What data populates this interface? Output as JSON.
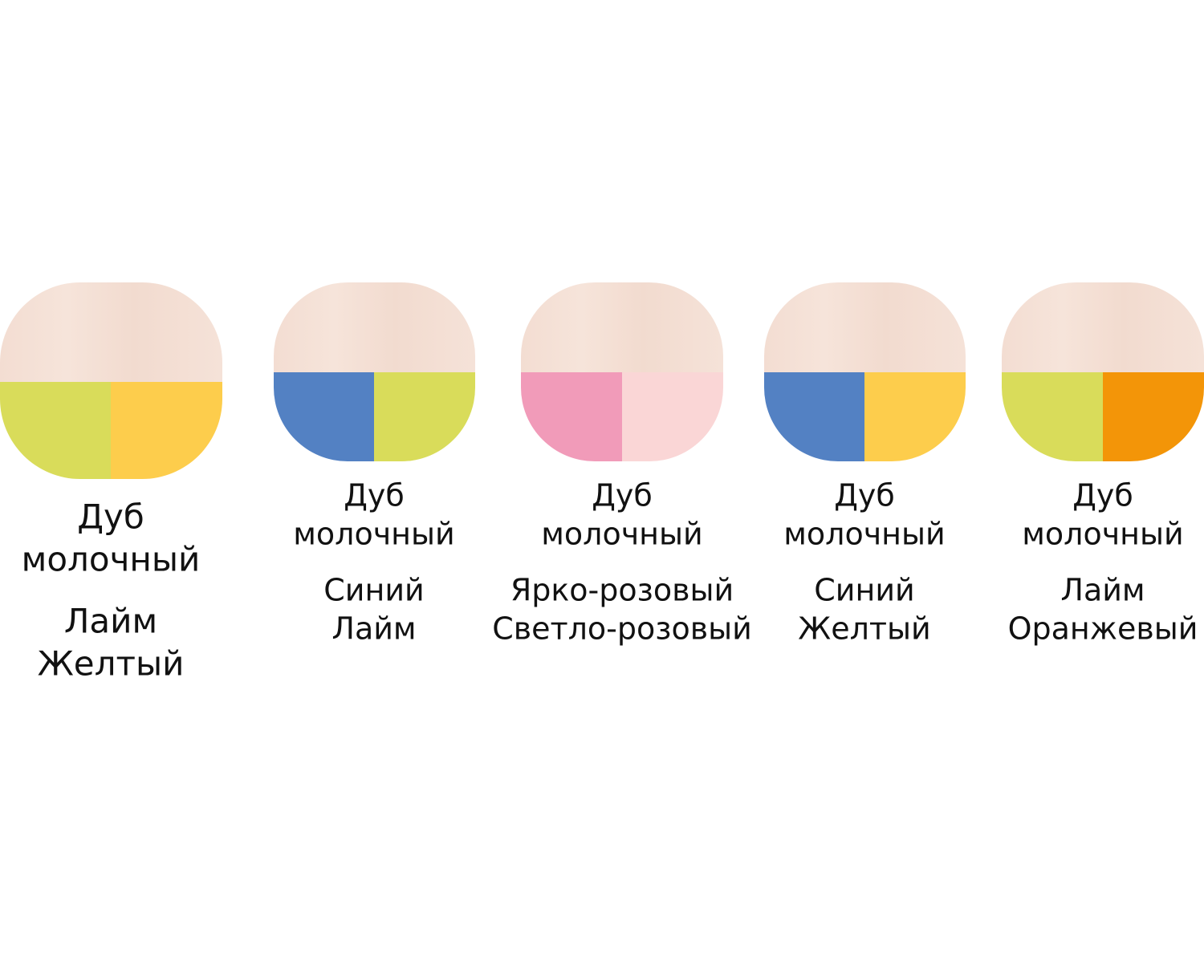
{
  "swatches": [
    {
      "material": [
        "Дуб",
        "молочный"
      ],
      "colors": [
        "Лайм",
        "Желтый"
      ]
    },
    {
      "material": [
        "Дуб",
        "молочный"
      ],
      "colors": [
        "Синий",
        "Лайм"
      ]
    },
    {
      "material": [
        "Дуб",
        "молочный"
      ],
      "colors": [
        "Ярко-розовый",
        "Светло-розовый"
      ]
    },
    {
      "material": [
        "Дуб",
        "молочный"
      ],
      "colors": [
        "Синий",
        "Желтый"
      ]
    },
    {
      "material": [
        "Дуб",
        "молочный"
      ],
      "colors": [
        "Лайм",
        "Оранжевый"
      ]
    }
  ]
}
